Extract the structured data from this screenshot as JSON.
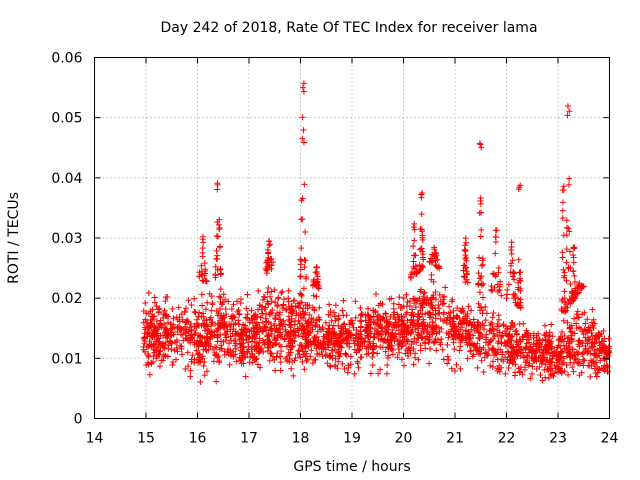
{
  "chart_data": {
    "type": "scatter",
    "title": "Day 242 of 2018, Rate Of TEC Index for receiver lama",
    "xlabel": "GPS time / hours",
    "ylabel": "ROTI / TECUs",
    "xlim": [
      14,
      24
    ],
    "ylim": [
      0,
      0.06
    ],
    "xticks": [
      14,
      15,
      16,
      17,
      18,
      19,
      20,
      21,
      22,
      23,
      24
    ],
    "yticks": [
      0,
      0.01,
      0.02,
      0.03,
      0.04,
      0.05,
      0.06
    ],
    "xtick_labels": [
      "14",
      "15",
      "16",
      "17",
      "18",
      "19",
      "20",
      "21",
      "22",
      "23",
      "24"
    ],
    "ytick_labels": [
      "0",
      "0.01",
      "0.02",
      "0.03",
      "0.04",
      "0.05",
      "0.06"
    ],
    "grid": true,
    "marker": "+",
    "color": "#ff0000",
    "series": [
      {
        "name": "ROTI",
        "x_range": [
          14.95,
          24.0
        ],
        "background": [
          {
            "x": 15.0,
            "low": 0.006,
            "high": 0.022
          },
          {
            "x": 15.5,
            "low": 0.006,
            "high": 0.021
          },
          {
            "x": 16.0,
            "low": 0.004,
            "high": 0.022
          },
          {
            "x": 16.5,
            "low": 0.006,
            "high": 0.024
          },
          {
            "x": 17.0,
            "low": 0.005,
            "high": 0.022
          },
          {
            "x": 17.5,
            "low": 0.005,
            "high": 0.025
          },
          {
            "x": 18.0,
            "low": 0.006,
            "high": 0.023
          },
          {
            "x": 18.5,
            "low": 0.006,
            "high": 0.021
          },
          {
            "x": 19.0,
            "low": 0.006,
            "high": 0.021
          },
          {
            "x": 19.5,
            "low": 0.006,
            "high": 0.022
          },
          {
            "x": 20.0,
            "low": 0.007,
            "high": 0.022
          },
          {
            "x": 20.5,
            "low": 0.008,
            "high": 0.026
          },
          {
            "x": 21.0,
            "low": 0.007,
            "high": 0.023
          },
          {
            "x": 21.5,
            "low": 0.006,
            "high": 0.022
          },
          {
            "x": 22.0,
            "low": 0.005,
            "high": 0.02
          },
          {
            "x": 22.5,
            "low": 0.005,
            "high": 0.017
          },
          {
            "x": 23.0,
            "low": 0.005,
            "high": 0.016
          },
          {
            "x": 23.5,
            "low": 0.005,
            "high": 0.022
          },
          {
            "x": 24.0,
            "low": 0.005,
            "high": 0.015
          }
        ],
        "bursts": [
          {
            "x": 16.1,
            "peak": 0.031,
            "width": 0.08
          },
          {
            "x": 16.4,
            "peak": 0.04,
            "width": 0.06
          },
          {
            "x": 17.4,
            "peak": 0.03,
            "width": 0.1
          },
          {
            "x": 18.05,
            "peak": 0.056,
            "width": 0.06
          },
          {
            "x": 18.3,
            "peak": 0.026,
            "width": 0.06
          },
          {
            "x": 20.2,
            "peak": 0.033,
            "width": 0.06
          },
          {
            "x": 20.35,
            "peak": 0.038,
            "width": 0.04
          },
          {
            "x": 20.6,
            "peak": 0.029,
            "width": 0.1
          },
          {
            "x": 21.2,
            "peak": 0.03,
            "width": 0.05
          },
          {
            "x": 21.5,
            "peak": 0.046,
            "width": 0.05
          },
          {
            "x": 21.8,
            "peak": 0.032,
            "width": 0.1
          },
          {
            "x": 22.1,
            "peak": 0.03,
            "width": 0.1
          },
          {
            "x": 22.25,
            "peak": 0.039,
            "width": 0.03
          },
          {
            "x": 23.1,
            "peak": 0.039,
            "width": 0.04
          },
          {
            "x": 23.2,
            "peak": 0.052,
            "width": 0.05
          },
          {
            "x": 23.3,
            "peak": 0.029,
            "width": 0.04
          },
          {
            "x": 23.4,
            "peak": 0.023,
            "width": 0.1
          }
        ]
      }
    ]
  }
}
